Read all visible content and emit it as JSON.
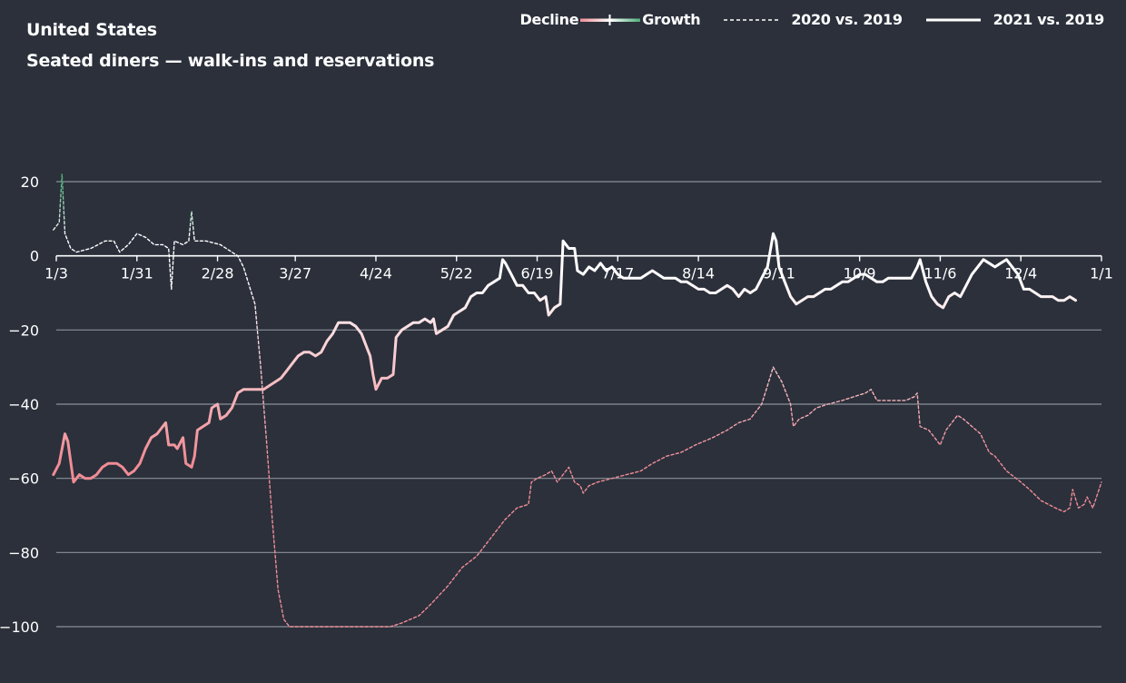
{
  "chart_data": {
    "type": "line",
    "title": "United States",
    "subtitle": "Seated diners — walk-ins and reservations",
    "xlabel": "",
    "ylabel": "",
    "ylim": [
      -100,
      20
    ],
    "y_ticks": [
      20,
      0,
      -20,
      -40,
      -60,
      -80,
      -100
    ],
    "y_tick_labels": [
      "20",
      "0",
      "−20",
      "−40",
      "−60",
      "−80",
      "−100"
    ],
    "x_ticks": [
      {
        "label": "1/3",
        "day": 0
      },
      {
        "label": "1/31",
        "day": 28
      },
      {
        "label": "2/28",
        "day": 56
      },
      {
        "label": "3/27",
        "day": 83
      },
      {
        "label": "4/24",
        "day": 111
      },
      {
        "label": "5/22",
        "day": 139
      },
      {
        "label": "6/19",
        "day": 167
      },
      {
        "label": "7/17",
        "day": 195
      },
      {
        "label": "8/14",
        "day": 223
      },
      {
        "label": "9/11",
        "day": 251
      },
      {
        "label": "10/9",
        "day": 279
      },
      {
        "label": "11/6",
        "day": 307
      },
      {
        "label": "12/4",
        "day": 335
      },
      {
        "label": "1/1",
        "day": 363
      }
    ],
    "legend": {
      "decline_label": "Decline",
      "growth_label": "Growth",
      "series_2020_label": "2020 vs. 2019",
      "series_2021_label": "2021 vs. 2019",
      "position": "top-right"
    },
    "colors": {
      "background": "#2b303b",
      "decline": "#f08c95",
      "neutral": "#ffffff",
      "growth": "#4fae7a",
      "grid": "#8a8f99"
    },
    "series": [
      {
        "name": "2020 vs. 2019",
        "style": "dashed",
        "points": [
          [
            -1,
            7
          ],
          [
            1,
            9
          ],
          [
            2,
            22
          ],
          [
            3,
            6
          ],
          [
            5,
            2
          ],
          [
            7,
            1
          ],
          [
            12,
            2
          ],
          [
            17,
            4
          ],
          [
            20,
            4
          ],
          [
            22,
            1
          ],
          [
            25,
            3
          ],
          [
            28,
            6
          ],
          [
            31,
            5
          ],
          [
            34,
            3
          ],
          [
            37,
            3
          ],
          [
            39,
            2
          ],
          [
            40,
            -9
          ],
          [
            41,
            4
          ],
          [
            44,
            3
          ],
          [
            46,
            4
          ],
          [
            47,
            12
          ],
          [
            48,
            4
          ],
          [
            52,
            4
          ],
          [
            57,
            3
          ],
          [
            61,
            1
          ],
          [
            63,
            0
          ],
          [
            65,
            -3
          ],
          [
            67,
            -8
          ],
          [
            69,
            -13
          ],
          [
            71,
            -30
          ],
          [
            73,
            -50
          ],
          [
            75,
            -71
          ],
          [
            77,
            -90
          ],
          [
            79,
            -98
          ],
          [
            81,
            -100
          ],
          [
            90,
            -100
          ],
          [
            100,
            -100
          ],
          [
            110,
            -100
          ],
          [
            116,
            -100
          ],
          [
            120,
            -99
          ],
          [
            126,
            -97
          ],
          [
            130,
            -94
          ],
          [
            136,
            -89
          ],
          [
            141,
            -84
          ],
          [
            146,
            -81
          ],
          [
            150,
            -77
          ],
          [
            153,
            -74
          ],
          [
            156,
            -71
          ],
          [
            160,
            -68
          ],
          [
            164,
            -67
          ],
          [
            165,
            -61
          ],
          [
            167,
            -60
          ],
          [
            170,
            -59
          ],
          [
            172,
            -58
          ],
          [
            174,
            -61
          ],
          [
            176,
            -59
          ],
          [
            178,
            -57
          ],
          [
            180,
            -61
          ],
          [
            182,
            -62
          ],
          [
            183,
            -64
          ],
          [
            185,
            -62
          ],
          [
            188,
            -61
          ],
          [
            193,
            -60
          ],
          [
            198,
            -59
          ],
          [
            203,
            -58
          ],
          [
            207,
            -56
          ],
          [
            212,
            -54
          ],
          [
            217,
            -53
          ],
          [
            222,
            -51
          ],
          [
            228,
            -49
          ],
          [
            233,
            -47
          ],
          [
            237,
            -45
          ],
          [
            241,
            -44
          ],
          [
            245,
            -40
          ],
          [
            247,
            -35
          ],
          [
            249,
            -30
          ],
          [
            252,
            -34
          ],
          [
            255,
            -40
          ],
          [
            256,
            -46
          ],
          [
            258,
            -44
          ],
          [
            261,
            -43
          ],
          [
            264,
            -41
          ],
          [
            268,
            -40
          ],
          [
            273,
            -39
          ],
          [
            277,
            -38
          ],
          [
            281,
            -37
          ],
          [
            283,
            -36
          ],
          [
            285,
            -39
          ],
          [
            290,
            -39
          ],
          [
            295,
            -39
          ],
          [
            298,
            -38
          ],
          [
            299,
            -37
          ],
          [
            300,
            -46
          ],
          [
            303,
            -47
          ],
          [
            306,
            -50
          ],
          [
            307,
            -51
          ],
          [
            309,
            -47
          ],
          [
            311,
            -45
          ],
          [
            313,
            -43
          ],
          [
            315,
            -44
          ],
          [
            318,
            -46
          ],
          [
            321,
            -48
          ],
          [
            324,
            -53
          ],
          [
            326,
            -54
          ],
          [
            330,
            -58
          ],
          [
            335,
            -61
          ],
          [
            338,
            -63
          ],
          [
            342,
            -66
          ],
          [
            347,
            -68
          ],
          [
            350,
            -69
          ],
          [
            352,
            -68
          ],
          [
            353,
            -63
          ],
          [
            355,
            -68
          ],
          [
            357,
            -67
          ],
          [
            358,
            -65
          ],
          [
            360,
            -68
          ],
          [
            363,
            -61
          ]
        ]
      },
      {
        "name": "2021 vs. 2019",
        "style": "solid",
        "points": [
          [
            -1,
            -59
          ],
          [
            1,
            -56
          ],
          [
            3,
            -48
          ],
          [
            4,
            -50
          ],
          [
            6,
            -61
          ],
          [
            8,
            -59
          ],
          [
            10,
            -60
          ],
          [
            12,
            -60
          ],
          [
            14,
            -59
          ],
          [
            16,
            -57
          ],
          [
            18,
            -56
          ],
          [
            21,
            -56
          ],
          [
            23,
            -57
          ],
          [
            25,
            -59
          ],
          [
            27,
            -58
          ],
          [
            29,
            -56
          ],
          [
            31,
            -52
          ],
          [
            33,
            -49
          ],
          [
            35,
            -48
          ],
          [
            37,
            -46
          ],
          [
            38,
            -45
          ],
          [
            39,
            -51
          ],
          [
            41,
            -51
          ],
          [
            42,
            -52
          ],
          [
            44,
            -49
          ],
          [
            45,
            -56
          ],
          [
            47,
            -57
          ],
          [
            48,
            -54
          ],
          [
            49,
            -47
          ],
          [
            51,
            -46
          ],
          [
            53,
            -45
          ],
          [
            54,
            -41
          ],
          [
            56,
            -40
          ],
          [
            57,
            -44
          ],
          [
            59,
            -43
          ],
          [
            61,
            -41
          ],
          [
            63,
            -37
          ],
          [
            65,
            -36
          ],
          [
            68,
            -36
          ],
          [
            70,
            -36
          ],
          [
            72,
            -36
          ],
          [
            74,
            -35
          ],
          [
            76,
            -34
          ],
          [
            78,
            -33
          ],
          [
            80,
            -31
          ],
          [
            82,
            -29
          ],
          [
            84,
            -27
          ],
          [
            86,
            -26
          ],
          [
            88,
            -26
          ],
          [
            90,
            -27
          ],
          [
            92,
            -26
          ],
          [
            94,
            -23
          ],
          [
            96,
            -21
          ],
          [
            98,
            -18
          ],
          [
            100,
            -18
          ],
          [
            102,
            -18
          ],
          [
            104,
            -19
          ],
          [
            106,
            -21
          ],
          [
            108,
            -25
          ],
          [
            109,
            -27
          ],
          [
            110,
            -32
          ],
          [
            111,
            -36
          ],
          [
            113,
            -33
          ],
          [
            115,
            -33
          ],
          [
            117,
            -32
          ],
          [
            118,
            -22
          ],
          [
            120,
            -20
          ],
          [
            122,
            -19
          ],
          [
            124,
            -18
          ],
          [
            126,
            -18
          ],
          [
            128,
            -17
          ],
          [
            130,
            -18
          ],
          [
            131,
            -17
          ],
          [
            132,
            -21
          ],
          [
            134,
            -20
          ],
          [
            136,
            -19
          ],
          [
            138,
            -16
          ],
          [
            140,
            -15
          ],
          [
            142,
            -14
          ],
          [
            144,
            -11
          ],
          [
            146,
            -10
          ],
          [
            148,
            -10
          ],
          [
            150,
            -8
          ],
          [
            152,
            -7
          ],
          [
            154,
            -6
          ],
          [
            155,
            -1
          ],
          [
            156,
            -2
          ],
          [
            158,
            -5
          ],
          [
            160,
            -8
          ],
          [
            162,
            -8
          ],
          [
            164,
            -10
          ],
          [
            166,
            -10
          ],
          [
            168,
            -12
          ],
          [
            170,
            -11
          ],
          [
            171,
            -16
          ],
          [
            173,
            -14
          ],
          [
            175,
            -13
          ],
          [
            176,
            4
          ],
          [
            178,
            2
          ],
          [
            180,
            2
          ],
          [
            181,
            -4
          ],
          [
            183,
            -5
          ],
          [
            185,
            -3
          ],
          [
            187,
            -4
          ],
          [
            189,
            -2
          ],
          [
            191,
            -4
          ],
          [
            193,
            -3
          ],
          [
            195,
            -5
          ],
          [
            197,
            -6
          ],
          [
            199,
            -6
          ],
          [
            201,
            -6
          ],
          [
            203,
            -6
          ],
          [
            205,
            -5
          ],
          [
            207,
            -4
          ],
          [
            209,
            -5
          ],
          [
            211,
            -6
          ],
          [
            213,
            -6
          ],
          [
            215,
            -6
          ],
          [
            217,
            -7
          ],
          [
            219,
            -7
          ],
          [
            221,
            -8
          ],
          [
            223,
            -9
          ],
          [
            225,
            -9
          ],
          [
            227,
            -10
          ],
          [
            229,
            -10
          ],
          [
            231,
            -9
          ],
          [
            233,
            -8
          ],
          [
            235,
            -9
          ],
          [
            237,
            -11
          ],
          [
            239,
            -9
          ],
          [
            241,
            -10
          ],
          [
            243,
            -9
          ],
          [
            245,
            -6
          ],
          [
            247,
            -3
          ],
          [
            249,
            6
          ],
          [
            250,
            4
          ],
          [
            251,
            -3
          ],
          [
            253,
            -7
          ],
          [
            255,
            -11
          ],
          [
            257,
            -13
          ],
          [
            259,
            -12
          ],
          [
            261,
            -11
          ],
          [
            263,
            -11
          ],
          [
            265,
            -10
          ],
          [
            267,
            -9
          ],
          [
            269,
            -9
          ],
          [
            271,
            -8
          ],
          [
            273,
            -7
          ],
          [
            275,
            -7
          ],
          [
            277,
            -6
          ],
          [
            279,
            -5
          ],
          [
            281,
            -5
          ],
          [
            283,
            -6
          ],
          [
            285,
            -7
          ],
          [
            287,
            -7
          ],
          [
            289,
            -6
          ],
          [
            291,
            -6
          ],
          [
            293,
            -6
          ],
          [
            295,
            -6
          ],
          [
            297,
            -6
          ],
          [
            299,
            -3
          ],
          [
            300,
            -1
          ],
          [
            302,
            -7
          ],
          [
            304,
            -11
          ],
          [
            306,
            -13
          ],
          [
            308,
            -14
          ],
          [
            310,
            -11
          ],
          [
            312,
            -10
          ],
          [
            314,
            -11
          ],
          [
            316,
            -8
          ],
          [
            318,
            -5
          ],
          [
            320,
            -3
          ],
          [
            322,
            -1
          ],
          [
            324,
            -2
          ],
          [
            326,
            -3
          ],
          [
            328,
            -2
          ],
          [
            330,
            -1
          ],
          [
            332,
            -3
          ],
          [
            334,
            -5
          ],
          [
            336,
            -9
          ],
          [
            338,
            -9
          ],
          [
            340,
            -10
          ],
          [
            342,
            -11
          ],
          [
            344,
            -11
          ],
          [
            346,
            -11
          ],
          [
            348,
            -12
          ],
          [
            350,
            -12
          ],
          [
            352,
            -11
          ],
          [
            354,
            -12
          ]
        ]
      }
    ]
  }
}
